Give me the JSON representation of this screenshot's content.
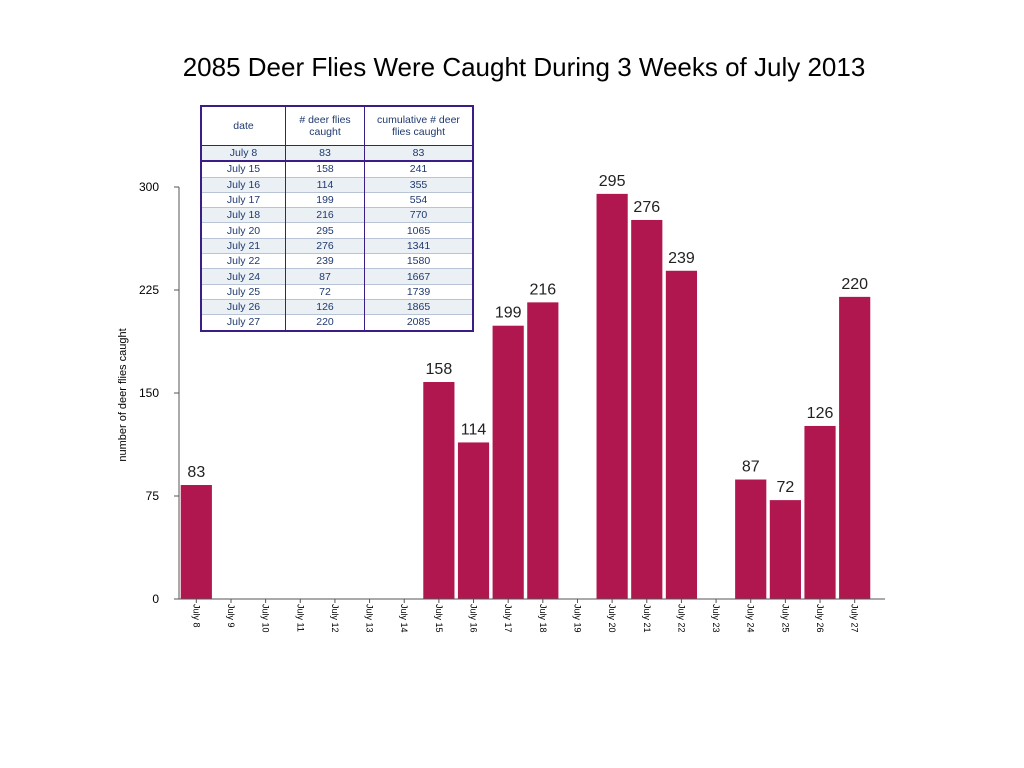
{
  "chart_data": {
    "type": "bar",
    "title": "2085 Deer Flies Were Caught During 3 Weeks of July 2013",
    "xlabel": "",
    "ylabel": "number of deer flies caught",
    "ylim": [
      0,
      300
    ],
    "yticks": [
      0,
      75,
      150,
      225,
      300
    ],
    "grid": false,
    "bar_color": "#b0174f",
    "categories": [
      "July 8",
      "July 9",
      "July 10",
      "July 11",
      "July 12",
      "July 13",
      "July 14",
      "July 15",
      "July 16",
      "July 17",
      "July 18",
      "July 19",
      "July 20",
      "July 21",
      "July 22",
      "July 23",
      "July 24",
      "July 25",
      "July 26",
      "July 27"
    ],
    "values": [
      83,
      null,
      null,
      null,
      null,
      null,
      null,
      158,
      114,
      199,
      216,
      null,
      295,
      276,
      239,
      null,
      87,
      72,
      126,
      220
    ],
    "data_labels": [
      "83",
      "",
      "",
      "",
      "",
      "",
      "",
      "158",
      "114",
      "199",
      "216",
      "",
      "295",
      "276",
      "239",
      "",
      "87",
      "72",
      "126",
      "220"
    ]
  },
  "table": {
    "headers": [
      "date",
      "# deer flies caught",
      "cumulative # deer flies caught"
    ],
    "rows": [
      [
        "July 8",
        "83",
        "83"
      ],
      [
        "July 15",
        "158",
        "241"
      ],
      [
        "July 16",
        "114",
        "355"
      ],
      [
        "July 17",
        "199",
        "554"
      ],
      [
        "July 18",
        "216",
        "770"
      ],
      [
        "July 20",
        "295",
        "1065"
      ],
      [
        "July 21",
        "276",
        "1341"
      ],
      [
        "July 22",
        "239",
        "1580"
      ],
      [
        "July 24",
        "87",
        "1667"
      ],
      [
        "July 25",
        "72",
        "1739"
      ],
      [
        "July 26",
        "126",
        "1865"
      ],
      [
        "July 27",
        "220",
        "2085"
      ]
    ]
  }
}
